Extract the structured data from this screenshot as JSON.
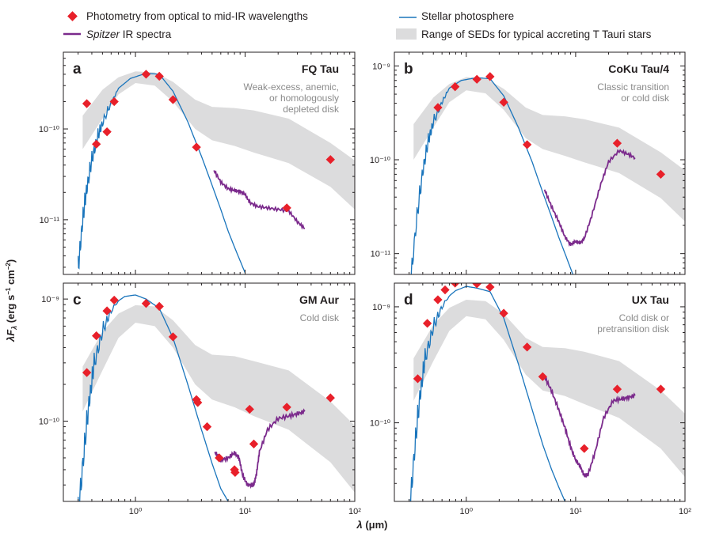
{
  "legend": {
    "photometry": "Photometry from optical to mid-IR wavelengths",
    "spitzer_italic": "Spitzer",
    "spitzer_rest": " IR spectra",
    "photosphere": "Stellar photosphere",
    "range": "Range of SEDs for typical accreting T Tauri stars"
  },
  "colors": {
    "photometry": "#e8202a",
    "spitzer": "#7b2a8c",
    "photosphere": "#1a75bc",
    "range": "#dcdcdd",
    "frame": "#231f20"
  },
  "axes": {
    "xlabel_main": "λF",
    "xlabel_sub": "λ",
    "ylabel_units": " (erg s",
    "ylabel_units2": " cm",
    "ylabel_close": ")",
    "x_label_text": "λ (μm)",
    "x_ticks": [
      "10⁰",
      "10¹",
      "10²"
    ],
    "y_label_full": "λFλ (erg s⁻¹ cm⁻²)"
  },
  "chart_data": [
    {
      "type": "scatter",
      "panel": "a",
      "title": "FQ Tau",
      "description": [
        "Weak-excess, anemic,",
        "or homologously",
        "depleted disk"
      ],
      "x_scale": "log",
      "y_scale": "log",
      "xlim": [
        0.22,
        100
      ],
      "ylim": [
        2.5e-12,
        7e-10
      ],
      "y_ticks": [
        {
          "value": 1e-10,
          "label": "10⁻¹⁰"
        },
        {
          "value": 1e-11,
          "label": "10⁻¹¹"
        }
      ],
      "photometry": [
        [
          0.36,
          1.9e-10
        ],
        [
          0.44,
          6.8e-11
        ],
        [
          0.55,
          9.3e-11
        ],
        [
          0.64,
          2e-10
        ],
        [
          1.25,
          4e-10
        ],
        [
          1.65,
          3.8e-10
        ],
        [
          2.2,
          2.1e-10
        ],
        [
          3.6,
          6.3e-11
        ],
        [
          24,
          1.35e-11
        ],
        [
          60,
          4.6e-11
        ]
      ],
      "photosphere": [
        [
          0.3,
          4e-12
        ],
        [
          0.33,
          1.4e-11
        ],
        [
          0.36,
          3e-11
        ],
        [
          0.4,
          6e-11
        ],
        [
          0.45,
          1e-10
        ],
        [
          0.5,
          1.4e-10
        ],
        [
          0.6,
          2.1e-10
        ],
        [
          0.7,
          2.8e-10
        ],
        [
          0.9,
          3.6e-10
        ],
        [
          1.25,
          4.1e-10
        ],
        [
          1.65,
          4e-10
        ],
        [
          2.2,
          2.6e-10
        ],
        [
          3,
          1.2e-10
        ],
        [
          4,
          5e-11
        ],
        [
          5,
          2.4e-11
        ],
        [
          6,
          1.3e-11
        ],
        [
          7,
          7.5e-12
        ],
        [
          8,
          5e-12
        ],
        [
          10,
          2.6e-12
        ]
      ],
      "sed_range_upper": [
        [
          0.33,
          1.4e-10
        ],
        [
          0.5,
          2.7e-10
        ],
        [
          0.7,
          3.7e-10
        ],
        [
          1.0,
          4.3e-10
        ],
        [
          1.5,
          4.2e-10
        ],
        [
          2.2,
          3.3e-10
        ],
        [
          3.5,
          2.1e-10
        ],
        [
          5,
          1.75e-10
        ],
        [
          8,
          1.7e-10
        ],
        [
          12,
          1.6e-10
        ],
        [
          25,
          1.3e-10
        ],
        [
          60,
          7e-11
        ],
        [
          100,
          4.5e-11
        ]
      ],
      "sed_range_lower": [
        [
          0.33,
          6e-11
        ],
        [
          0.5,
          1.3e-10
        ],
        [
          0.7,
          2.4e-10
        ],
        [
          1.0,
          3.2e-10
        ],
        [
          1.5,
          3e-10
        ],
        [
          2.2,
          2e-10
        ],
        [
          3.5,
          1e-10
        ],
        [
          5,
          7.5e-11
        ],
        [
          8,
          6.5e-11
        ],
        [
          12,
          5.5e-11
        ],
        [
          25,
          4.2e-11
        ],
        [
          60,
          2.3e-11
        ],
        [
          100,
          1.3e-11
        ]
      ],
      "spitzer": [
        [
          5.2,
          3.5e-11
        ],
        [
          6,
          2.6e-11
        ],
        [
          7,
          2.2e-11
        ],
        [
          8,
          2.1e-11
        ],
        [
          9,
          2.05e-11
        ],
        [
          10,
          1.9e-11
        ],
        [
          11,
          1.55e-11
        ],
        [
          13,
          1.4e-11
        ],
        [
          16,
          1.35e-11
        ],
        [
          20,
          1.3e-11
        ],
        [
          25,
          1.25e-11
        ],
        [
          30,
          9.5e-12
        ],
        [
          35,
          8e-12
        ]
      ]
    },
    {
      "type": "scatter",
      "panel": "b",
      "title": "CoKu Tau/4",
      "description": [
        "Classic transition",
        "or cold disk"
      ],
      "x_scale": "log",
      "y_scale": "log",
      "xlim": [
        0.22,
        100
      ],
      "ylim": [
        6e-12,
        1.4e-09
      ],
      "y_ticks": [
        {
          "value": 1e-09,
          "label": "10⁻⁹"
        },
        {
          "value": 1e-10,
          "label": "10⁻¹⁰"
        },
        {
          "value": 1e-11,
          "label": "10⁻¹¹"
        }
      ],
      "photometry": [
        [
          0.55,
          3.6e-10
        ],
        [
          0.79,
          6e-10
        ],
        [
          1.25,
          7.2e-10
        ],
        [
          1.65,
          7.7e-10
        ],
        [
          2.2,
          4.1e-10
        ],
        [
          3.6,
          1.45e-10
        ],
        [
          24,
          1.5e-10
        ],
        [
          60,
          7e-11
        ]
      ],
      "photosphere": [
        [
          0.3,
          5e-12
        ],
        [
          0.35,
          3e-11
        ],
        [
          0.4,
          1e-10
        ],
        [
          0.45,
          2e-10
        ],
        [
          0.5,
          3e-10
        ],
        [
          0.6,
          4.5e-10
        ],
        [
          0.7,
          5.8e-10
        ],
        [
          0.9,
          7e-10
        ],
        [
          1.25,
          7.5e-10
        ],
        [
          1.65,
          7.3e-10
        ],
        [
          2.2,
          4.8e-10
        ],
        [
          3,
          2.2e-10
        ],
        [
          4,
          9.5e-11
        ],
        [
          5,
          4.5e-11
        ],
        [
          6,
          2.5e-11
        ],
        [
          7,
          1.5e-11
        ],
        [
          8,
          1e-11
        ],
        [
          10,
          5e-12
        ]
      ],
      "sed_range_upper": [
        [
          0.33,
          2.4e-10
        ],
        [
          0.5,
          4.6e-10
        ],
        [
          0.7,
          6.4e-10
        ],
        [
          1.0,
          7.6e-10
        ],
        [
          1.5,
          7.4e-10
        ],
        [
          2.2,
          5.7e-10
        ],
        [
          3.5,
          3.6e-10
        ],
        [
          5,
          3e-10
        ],
        [
          8,
          2.9e-10
        ],
        [
          12,
          2.7e-10
        ],
        [
          25,
          2.2e-10
        ],
        [
          60,
          1.2e-10
        ],
        [
          100,
          7.7e-11
        ]
      ],
      "sed_range_lower": [
        [
          0.33,
          1e-10
        ],
        [
          0.5,
          2.2e-10
        ],
        [
          0.7,
          4.1e-10
        ],
        [
          1.0,
          5.5e-10
        ],
        [
          1.5,
          5.1e-10
        ],
        [
          2.2,
          3.4e-10
        ],
        [
          3.5,
          1.7e-10
        ],
        [
          5,
          1.3e-10
        ],
        [
          8,
          1.1e-10
        ],
        [
          12,
          9.4e-11
        ],
        [
          25,
          7.2e-11
        ],
        [
          60,
          3.9e-11
        ],
        [
          100,
          2.2e-11
        ]
      ],
      "spitzer": [
        [
          5.2,
          4.8e-11
        ],
        [
          6,
          3.2e-11
        ],
        [
          7,
          2.2e-11
        ],
        [
          8,
          1.5e-11
        ],
        [
          9,
          1.25e-11
        ],
        [
          10,
          1.35e-11
        ],
        [
          11,
          1.3e-11
        ],
        [
          12,
          1.45e-11
        ],
        [
          14,
          2.5e-11
        ],
        [
          17,
          5.5e-11
        ],
        [
          20,
          9.5e-11
        ],
        [
          25,
          1.25e-10
        ],
        [
          30,
          1.15e-10
        ],
        [
          35,
          1.05e-10
        ]
      ]
    },
    {
      "type": "scatter",
      "panel": "c",
      "title": "GM Aur",
      "description": [
        "Cold disk"
      ],
      "x_scale": "log",
      "y_scale": "log",
      "xlim": [
        0.22,
        100
      ],
      "ylim": [
        2.2e-11,
        1.35e-09
      ],
      "y_ticks": [
        {
          "value": 1e-09,
          "label": "10⁻⁹"
        },
        {
          "value": 1e-10,
          "label": "10⁻¹⁰"
        }
      ],
      "photometry": [
        [
          0.36,
          2.5e-10
        ],
        [
          0.44,
          5e-10
        ],
        [
          0.55,
          8e-10
        ],
        [
          0.64,
          9.8e-10
        ],
        [
          1.25,
          9.2e-10
        ],
        [
          1.65,
          8.7e-10
        ],
        [
          2.2,
          4.9e-10
        ],
        [
          3.6,
          1.5e-10
        ],
        [
          3.7,
          1.42e-10
        ],
        [
          4.5,
          9e-11
        ],
        [
          5.8,
          5e-11
        ],
        [
          8,
          4e-11
        ],
        [
          8.1,
          3.8e-11
        ],
        [
          11,
          1.25e-10
        ],
        [
          12,
          6.5e-11
        ],
        [
          24,
          1.3e-10
        ],
        [
          60,
          1.55e-10
        ]
      ],
      "photosphere": [
        [
          0.3,
          2.4e-11
        ],
        [
          0.34,
          8e-11
        ],
        [
          0.38,
          2e-10
        ],
        [
          0.42,
          3.8e-10
        ],
        [
          0.5,
          6.5e-10
        ],
        [
          0.6,
          8.8e-10
        ],
        [
          0.8,
          1.05e-09
        ],
        [
          1.0,
          1.08e-09
        ],
        [
          1.25,
          1e-09
        ],
        [
          1.65,
          8.4e-10
        ],
        [
          2.2,
          4.8e-10
        ],
        [
          3,
          2e-10
        ],
        [
          4,
          8.5e-11
        ],
        [
          5,
          4.5e-11
        ],
        [
          6,
          2.8e-11
        ],
        [
          7,
          2.2e-11
        ]
      ],
      "sed_range_upper": [
        [
          0.33,
          2.8e-10
        ],
        [
          0.5,
          5.4e-10
        ],
        [
          0.7,
          7.6e-10
        ],
        [
          1.0,
          8.9e-10
        ],
        [
          1.5,
          8.7e-10
        ],
        [
          2.2,
          6.7e-10
        ],
        [
          3.5,
          4.2e-10
        ],
        [
          5,
          3.5e-10
        ],
        [
          8,
          3.4e-10
        ],
        [
          12,
          3.1e-10
        ],
        [
          25,
          2.6e-10
        ],
        [
          60,
          1.45e-10
        ],
        [
          100,
          9.2e-11
        ]
      ],
      "sed_range_lower": [
        [
          0.33,
          1.2e-10
        ],
        [
          0.5,
          2.6e-10
        ],
        [
          0.7,
          4.8e-10
        ],
        [
          1.0,
          6.4e-10
        ],
        [
          1.5,
          6e-10
        ],
        [
          2.2,
          4e-10
        ],
        [
          3.5,
          2e-10
        ],
        [
          5,
          1.5e-10
        ],
        [
          8,
          1.3e-10
        ],
        [
          12,
          1.1e-10
        ],
        [
          25,
          8.5e-11
        ],
        [
          60,
          4.6e-11
        ],
        [
          100,
          2.6e-11
        ]
      ],
      "spitzer": [
        [
          5.3,
          5.6e-11
        ],
        [
          6,
          4.8e-11
        ],
        [
          7,
          5e-11
        ],
        [
          8,
          5.5e-11
        ],
        [
          8.8,
          5e-11
        ],
        [
          9.5,
          3.6e-11
        ],
        [
          10.5,
          3e-11
        ],
        [
          12,
          3e-11
        ],
        [
          12.7,
          3.7e-11
        ],
        [
          13.5,
          5.6e-11
        ],
        [
          16,
          8.5e-11
        ],
        [
          20,
          1.05e-10
        ],
        [
          25,
          1.1e-10
        ],
        [
          30,
          1.15e-10
        ],
        [
          35,
          1.2e-10
        ]
      ]
    },
    {
      "type": "scatter",
      "panel": "d",
      "title": "UX Tau",
      "description": [
        "Cold disk or",
        "pretransition disk"
      ],
      "x_scale": "log",
      "y_scale": "log",
      "xlim": [
        0.22,
        100
      ],
      "ylim": [
        2.1e-11,
        1.6e-09
      ],
      "y_ticks": [
        {
          "value": 1e-09,
          "label": "10⁻⁹"
        },
        {
          "value": 1e-10,
          "label": "10⁻¹⁰"
        }
      ],
      "photometry": [
        [
          0.36,
          2.4e-10
        ],
        [
          0.44,
          7.2e-10
        ],
        [
          0.55,
          1.15e-09
        ],
        [
          0.64,
          1.4e-09
        ],
        [
          0.79,
          1.6e-09
        ],
        [
          1.25,
          1.58e-09
        ],
        [
          1.65,
          1.48e-09
        ],
        [
          2.2,
          8.8e-10
        ],
        [
          3.6,
          4.5e-10
        ],
        [
          5,
          2.5e-10
        ],
        [
          12,
          6e-11
        ],
        [
          24,
          1.95e-10
        ],
        [
          60,
          1.95e-10
        ]
      ],
      "photosphere": [
        [
          0.3,
          2.2e-11
        ],
        [
          0.34,
          9e-11
        ],
        [
          0.38,
          2.4e-10
        ],
        [
          0.42,
          4.6e-10
        ],
        [
          0.5,
          8e-10
        ],
        [
          0.6,
          1.1e-09
        ],
        [
          0.8,
          1.38e-09
        ],
        [
          1.0,
          1.5e-09
        ],
        [
          1.25,
          1.45e-09
        ],
        [
          1.65,
          1.35e-09
        ],
        [
          2.2,
          8e-10
        ],
        [
          3,
          3.2e-10
        ],
        [
          4,
          1.3e-10
        ],
        [
          5,
          6.5e-11
        ],
        [
          6,
          4e-11
        ],
        [
          7,
          2.8e-11
        ],
        [
          8,
          2.1e-11
        ]
      ],
      "sed_range_upper": [
        [
          0.33,
          3.6e-10
        ],
        [
          0.5,
          7e-10
        ],
        [
          0.7,
          9.8e-10
        ],
        [
          1.0,
          1.15e-09
        ],
        [
          1.5,
          1.12e-09
        ],
        [
          2.2,
          8.7e-10
        ],
        [
          3.5,
          5.4e-10
        ],
        [
          5,
          4.5e-10
        ],
        [
          8,
          4.4e-10
        ],
        [
          12,
          4.1e-10
        ],
        [
          25,
          3.4e-10
        ],
        [
          60,
          1.9e-10
        ],
        [
          100,
          1.2e-10
        ]
      ],
      "sed_range_lower": [
        [
          0.33,
          1.55e-10
        ],
        [
          0.5,
          3.4e-10
        ],
        [
          0.7,
          6.2e-10
        ],
        [
          1.0,
          8.3e-10
        ],
        [
          1.5,
          7.8e-10
        ],
        [
          2.2,
          5.2e-10
        ],
        [
          3.5,
          2.6e-10
        ],
        [
          5,
          1.9e-10
        ],
        [
          8,
          1.7e-10
        ],
        [
          12,
          1.45e-10
        ],
        [
          25,
          1.1e-10
        ],
        [
          60,
          6e-11
        ],
        [
          100,
          3.4e-11
        ]
      ],
      "spitzer": [
        [
          5.2,
          2.5e-10
        ],
        [
          6,
          1.9e-10
        ],
        [
          7,
          1.3e-10
        ],
        [
          8,
          9e-11
        ],
        [
          9,
          6.2e-11
        ],
        [
          10,
          4.8e-11
        ],
        [
          11,
          4.2e-11
        ],
        [
          12,
          3.5e-11
        ],
        [
          13,
          3.6e-11
        ],
        [
          15,
          5.5e-11
        ],
        [
          18,
          1.1e-10
        ],
        [
          22,
          1.55e-10
        ],
        [
          26,
          1.6e-10
        ],
        [
          30,
          1.65e-10
        ],
        [
          35,
          1.72e-10
        ]
      ]
    }
  ]
}
